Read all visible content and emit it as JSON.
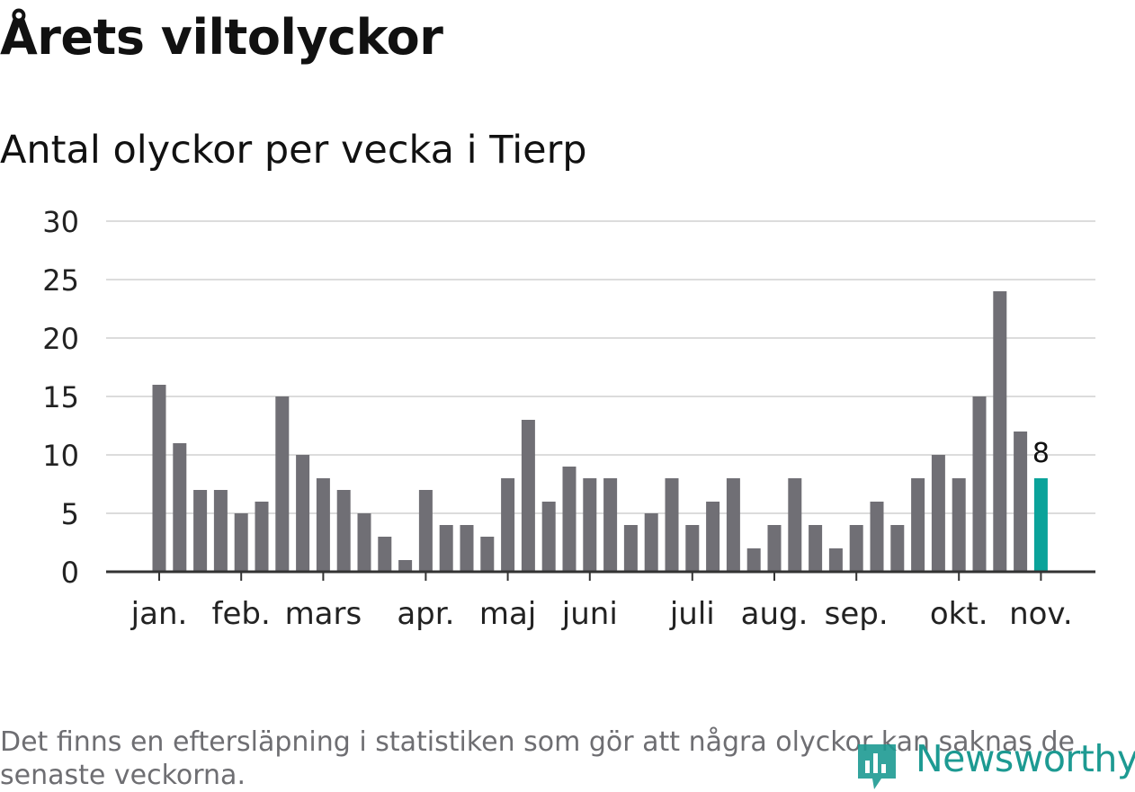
{
  "title": "Årets viltolyckor",
  "subtitle": "Antal olyckor per vecka i Tierp",
  "note": "Det finns en eftersläpning i statistiken som gör att några olyckor kan saknas de senaste veckorna.",
  "brand": {
    "name": "Newsworthy",
    "icon": "newsworthy-logo-icon",
    "color": "#1d9a92"
  },
  "colors": {
    "bar": "#706f75",
    "highlight": "#0aa39a",
    "grid": "#dcdcdc",
    "axis": "#333333"
  },
  "chart_data": {
    "type": "bar",
    "title": "Antal olyckor per vecka i Tierp",
    "xlabel": "",
    "ylabel": "",
    "ylim": [
      0,
      30
    ],
    "yticks": [
      0,
      5,
      10,
      15,
      20,
      25,
      30
    ],
    "grid": true,
    "weeks": [
      1,
      2,
      3,
      4,
      5,
      6,
      7,
      8,
      9,
      10,
      11,
      12,
      13,
      14,
      15,
      16,
      17,
      18,
      19,
      20,
      21,
      22,
      23,
      24,
      25,
      26,
      27,
      28,
      29,
      30,
      31,
      32,
      33,
      34,
      35,
      36,
      37,
      38,
      39,
      40,
      41,
      42,
      43,
      44
    ],
    "values": [
      16,
      11,
      7,
      7,
      5,
      6,
      15,
      10,
      8,
      7,
      5,
      3,
      1,
      7,
      4,
      4,
      3,
      8,
      13,
      6,
      9,
      8,
      8,
      4,
      5,
      8,
      4,
      6,
      8,
      2,
      4,
      8,
      4,
      2,
      4,
      6,
      4,
      8,
      10,
      8,
      15,
      24,
      12,
      8
    ],
    "month_ticks": [
      {
        "label": "jan.",
        "week": 1
      },
      {
        "label": "feb.",
        "week": 5
      },
      {
        "label": "mars",
        "week": 9
      },
      {
        "label": "apr.",
        "week": 14
      },
      {
        "label": "maj",
        "week": 18
      },
      {
        "label": "juni",
        "week": 22
      },
      {
        "label": "juli",
        "week": 27
      },
      {
        "label": "aug.",
        "week": 31
      },
      {
        "label": "sep.",
        "week": 35
      },
      {
        "label": "okt.",
        "week": 40
      },
      {
        "label": "nov.",
        "week": 44
      }
    ],
    "highlight_index": 43,
    "highlight_label": "8"
  }
}
